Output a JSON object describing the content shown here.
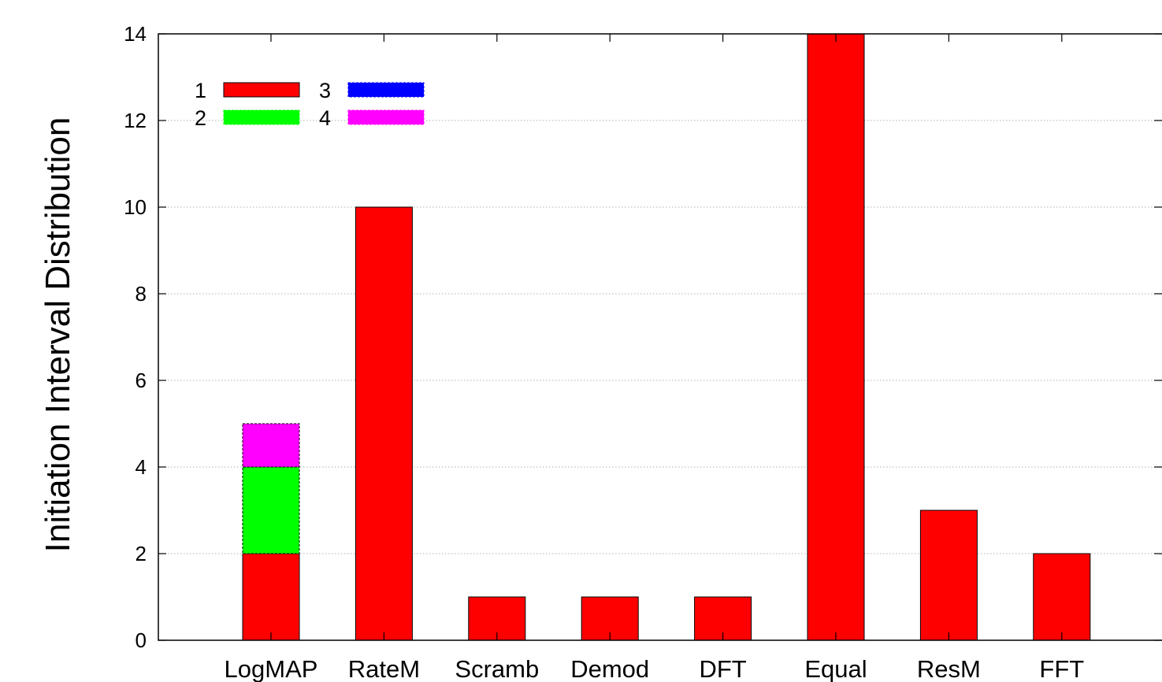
{
  "chart_data": {
    "type": "bar",
    "stacked": true,
    "title": "",
    "xlabel": "",
    "ylabel": "Initiation Interval Distribution",
    "ylim": [
      0,
      14
    ],
    "yticks": [
      "0",
      "2",
      "4",
      "6",
      "8",
      "10",
      "12",
      "14"
    ],
    "grid": true,
    "legend_position": "top-left",
    "categories": [
      "LogMAP",
      "RateM",
      "Scramb",
      "Demod",
      "DFT",
      "Equal",
      "ResM",
      "FFT"
    ],
    "series": [
      {
        "name": "1",
        "color": "#ff0000",
        "values": [
          2,
          10,
          1,
          1,
          1,
          14,
          3,
          2
        ]
      },
      {
        "name": "2",
        "color": "#00ff00",
        "values": [
          2,
          0,
          0,
          0,
          0,
          0,
          0,
          0
        ]
      },
      {
        "name": "3",
        "color": "#0000ff",
        "values": [
          0,
          0,
          0,
          0,
          0,
          0,
          0,
          0
        ]
      },
      {
        "name": "4",
        "color": "#ff00ff",
        "values": [
          1,
          0,
          0,
          0,
          0,
          0,
          0,
          0
        ]
      }
    ]
  }
}
